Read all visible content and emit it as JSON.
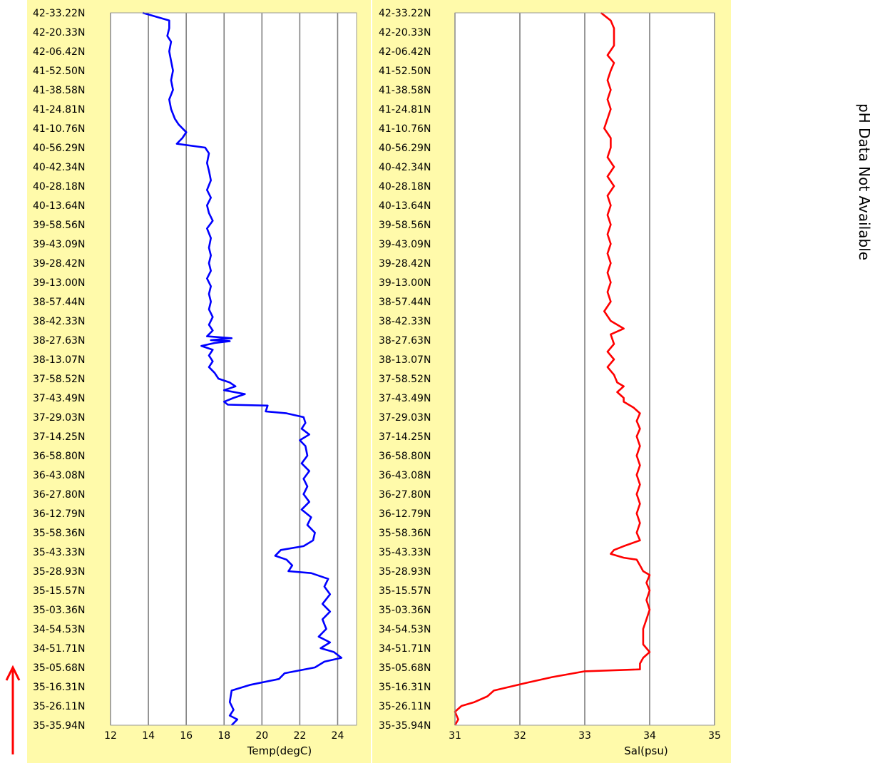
{
  "side_note": "pH Data Not Available",
  "colors": {
    "panel_background": "#fffaaa",
    "gridline": "#7f7f7f",
    "temperature_line": "#0000ff",
    "salinity_line": "#ff0000",
    "direction_arrow": "#ff0000"
  },
  "latitude_labels": [
    "42-33.22N",
    "42-20.33N",
    "42-06.42N",
    "41-52.50N",
    "41-38.58N",
    "41-24.81N",
    "41-10.76N",
    "40-56.29N",
    "40-42.34N",
    "40-28.18N",
    "40-13.64N",
    "39-58.56N",
    "39-43.09N",
    "39-28.42N",
    "39-13.00N",
    "38-57.44N",
    "38-42.33N",
    "38-27.63N",
    "38-13.07N",
    "37-58.52N",
    "37-43.49N",
    "37-29.03N",
    "37-14.25N",
    "36-58.80N",
    "36-43.08N",
    "36-27.80N",
    "36-12.79N",
    "35-58.36N",
    "35-43.33N",
    "35-28.93N",
    "35-15.57N",
    "35-03.36N",
    "34-54.53N",
    "34-51.71N",
    "35-05.68N",
    "35-16.31N",
    "35-26.11N",
    "35-35.94N"
  ],
  "chart_data": [
    {
      "type": "line",
      "orientation": "vertical",
      "xlabel": "Temp(degC)",
      "xlim": [
        12,
        25
      ],
      "xticks": [
        "12",
        "14",
        "16",
        "18",
        "20",
        "22",
        "24"
      ],
      "ylabel": "",
      "grid": "vertical",
      "series": [
        {
          "values": [
            [
              13.7,
              37
            ],
            [
              15.1,
              36.6
            ],
            [
              15.1,
              36.2
            ],
            [
              15.0,
              35.8
            ],
            [
              15.2,
              35.5
            ],
            [
              15.1,
              35
            ],
            [
              15.2,
              34.5
            ],
            [
              15.3,
              34
            ],
            [
              15.2,
              33.5
            ],
            [
              15.3,
              33
            ],
            [
              15.1,
              32.5
            ],
            [
              15.2,
              32
            ],
            [
              15.4,
              31.5
            ],
            [
              15.6,
              31.2
            ],
            [
              16.0,
              30.8
            ],
            [
              15.8,
              30.5
            ],
            [
              15.5,
              30.2
            ],
            [
              17.0,
              30.0
            ],
            [
              17.2,
              29.7
            ],
            [
              17.1,
              29.2
            ],
            [
              17.2,
              28.8
            ],
            [
              17.3,
              28.3
            ],
            [
              17.1,
              27.8
            ],
            [
              17.3,
              27.4
            ],
            [
              17.1,
              27.0
            ],
            [
              17.2,
              26.6
            ],
            [
              17.4,
              26.2
            ],
            [
              17.1,
              25.8
            ],
            [
              17.3,
              25.3
            ],
            [
              17.2,
              24.8
            ],
            [
              17.3,
              24.4
            ],
            [
              17.2,
              24.0
            ],
            [
              17.3,
              23.6
            ],
            [
              17.1,
              23.2
            ],
            [
              17.3,
              22.8
            ],
            [
              17.2,
              22.4
            ],
            [
              17.3,
              22.0
            ],
            [
              17.2,
              21.6
            ],
            [
              17.4,
              21.2
            ],
            [
              17.2,
              20.8
            ],
            [
              17.4,
              20.5
            ],
            [
              17.1,
              20.2
            ],
            [
              18.4,
              20.1
            ],
            [
              17.3,
              20.0
            ],
            [
              18.3,
              19.95
            ],
            [
              17.5,
              19.85
            ],
            [
              16.8,
              19.7
            ],
            [
              17.4,
              19.5
            ],
            [
              17.2,
              19.2
            ],
            [
              17.4,
              18.9
            ],
            [
              17.2,
              18.6
            ],
            [
              17.5,
              18.3
            ],
            [
              17.7,
              18.0
            ],
            [
              18.3,
              17.8
            ],
            [
              18.6,
              17.6
            ],
            [
              18.0,
              17.4
            ],
            [
              19.1,
              17.2
            ],
            [
              18.5,
              17.0
            ],
            [
              18.0,
              16.8
            ],
            [
              18.2,
              16.65
            ],
            [
              20.3,
              16.6
            ],
            [
              20.2,
              16.3
            ],
            [
              21.3,
              16.2
            ],
            [
              22.2,
              16.0
            ],
            [
              22.3,
              15.7
            ],
            [
              22.1,
              15.4
            ],
            [
              22.5,
              15.1
            ],
            [
              22.0,
              14.8
            ],
            [
              22.3,
              14.5
            ],
            [
              22.4,
              14.0
            ],
            [
              22.1,
              13.6
            ],
            [
              22.5,
              13.2
            ],
            [
              22.2,
              12.8
            ],
            [
              22.4,
              12.4
            ],
            [
              22.2,
              12.0
            ],
            [
              22.5,
              11.6
            ],
            [
              22.1,
              11.2
            ],
            [
              22.6,
              10.8
            ],
            [
              22.4,
              10.4
            ],
            [
              22.8,
              10.0
            ],
            [
              22.7,
              9.6
            ],
            [
              22.2,
              9.3
            ],
            [
              21.0,
              9.1
            ],
            [
              20.7,
              8.8
            ],
            [
              21.3,
              8.6
            ],
            [
              21.6,
              8.3
            ],
            [
              21.4,
              8.0
            ],
            [
              22.6,
              7.9
            ],
            [
              23.5,
              7.6
            ],
            [
              23.3,
              7.2
            ],
            [
              23.6,
              6.8
            ],
            [
              23.2,
              6.3
            ],
            [
              23.6,
              5.9
            ],
            [
              23.2,
              5.5
            ],
            [
              23.4,
              5.0
            ],
            [
              23.0,
              4.6
            ],
            [
              23.6,
              4.3
            ],
            [
              23.1,
              4.0
            ],
            [
              23.8,
              3.8
            ],
            [
              24.2,
              3.5
            ],
            [
              23.3,
              3.3
            ],
            [
              22.8,
              3.0
            ],
            [
              21.2,
              2.7
            ],
            [
              20.9,
              2.4
            ],
            [
              19.4,
              2.1
            ],
            [
              18.4,
              1.8
            ],
            [
              18.3,
              1.2
            ],
            [
              18.5,
              0.8
            ],
            [
              18.3,
              0.5
            ],
            [
              18.7,
              0.3
            ],
            [
              18.4,
              0.0
            ]
          ]
        }
      ]
    },
    {
      "type": "line",
      "orientation": "vertical",
      "xlabel": "Sal(psu)",
      "xlim": [
        31,
        35
      ],
      "xticks": [
        "31",
        "32",
        "33",
        "34",
        "35"
      ],
      "ylabel": "",
      "grid": "vertical",
      "series": [
        {
          "values": [
            [
              33.25,
              37
            ],
            [
              33.4,
              36.6
            ],
            [
              33.45,
              36.2
            ],
            [
              33.45,
              35.8
            ],
            [
              33.45,
              35.3
            ],
            [
              33.35,
              34.8
            ],
            [
              33.45,
              34.4
            ],
            [
              33.4,
              34.0
            ],
            [
              33.35,
              33.5
            ],
            [
              33.4,
              33.0
            ],
            [
              33.35,
              32.5
            ],
            [
              33.4,
              32.0
            ],
            [
              33.35,
              31.5
            ],
            [
              33.3,
              31.0
            ],
            [
              33.4,
              30.5
            ],
            [
              33.4,
              30.0
            ],
            [
              33.35,
              29.5
            ],
            [
              33.45,
              29.0
            ],
            [
              33.35,
              28.5
            ],
            [
              33.45,
              28.0
            ],
            [
              33.35,
              27.5
            ],
            [
              33.4,
              27.0
            ],
            [
              33.35,
              26.5
            ],
            [
              33.4,
              26.0
            ],
            [
              33.35,
              25.5
            ],
            [
              33.4,
              25.0
            ],
            [
              33.35,
              24.5
            ],
            [
              33.4,
              24.0
            ],
            [
              33.35,
              23.5
            ],
            [
              33.4,
              23.0
            ],
            [
              33.35,
              22.5
            ],
            [
              33.4,
              22.0
            ],
            [
              33.3,
              21.5
            ],
            [
              33.4,
              21.0
            ],
            [
              33.6,
              20.6
            ],
            [
              33.4,
              20.3
            ],
            [
              33.45,
              19.8
            ],
            [
              33.35,
              19.4
            ],
            [
              33.45,
              19.0
            ],
            [
              33.35,
              18.6
            ],
            [
              33.45,
              18.2
            ],
            [
              33.5,
              17.8
            ],
            [
              33.6,
              17.6
            ],
            [
              33.5,
              17.3
            ],
            [
              33.6,
              17.0
            ],
            [
              33.6,
              16.8
            ],
            [
              33.75,
              16.5
            ],
            [
              33.85,
              16.2
            ],
            [
              33.8,
              15.8
            ],
            [
              33.85,
              15.4
            ],
            [
              33.8,
              15.0
            ],
            [
              33.85,
              14.5
            ],
            [
              33.8,
              14.0
            ],
            [
              33.85,
              13.5
            ],
            [
              33.8,
              13.0
            ],
            [
              33.85,
              12.5
            ],
            [
              33.8,
              12.0
            ],
            [
              33.85,
              11.5
            ],
            [
              33.8,
              11.0
            ],
            [
              33.85,
              10.5
            ],
            [
              33.8,
              10.0
            ],
            [
              33.85,
              9.6
            ],
            [
              33.6,
              9.3
            ],
            [
              33.45,
              9.1
            ],
            [
              33.4,
              8.9
            ],
            [
              33.6,
              8.7
            ],
            [
              33.8,
              8.6
            ],
            [
              33.85,
              8.3
            ],
            [
              33.9,
              8.0
            ],
            [
              34.0,
              7.8
            ],
            [
              33.95,
              7.4
            ],
            [
              34.0,
              7.0
            ],
            [
              33.95,
              6.5
            ],
            [
              34.0,
              6.0
            ],
            [
              33.95,
              5.5
            ],
            [
              33.9,
              5.0
            ],
            [
              33.9,
              4.6
            ],
            [
              33.9,
              4.2
            ],
            [
              34.0,
              3.8
            ],
            [
              33.9,
              3.5
            ],
            [
              33.85,
              3.2
            ],
            [
              33.85,
              2.9
            ],
            [
              33.0,
              2.8
            ],
            [
              32.5,
              2.5
            ],
            [
              32.1,
              2.2
            ],
            [
              31.6,
              1.8
            ],
            [
              31.5,
              1.5
            ],
            [
              31.3,
              1.2
            ],
            [
              31.1,
              1.0
            ],
            [
              31.0,
              0.7
            ],
            [
              31.05,
              0.3
            ],
            [
              31.0,
              0.0
            ]
          ]
        }
      ]
    }
  ]
}
